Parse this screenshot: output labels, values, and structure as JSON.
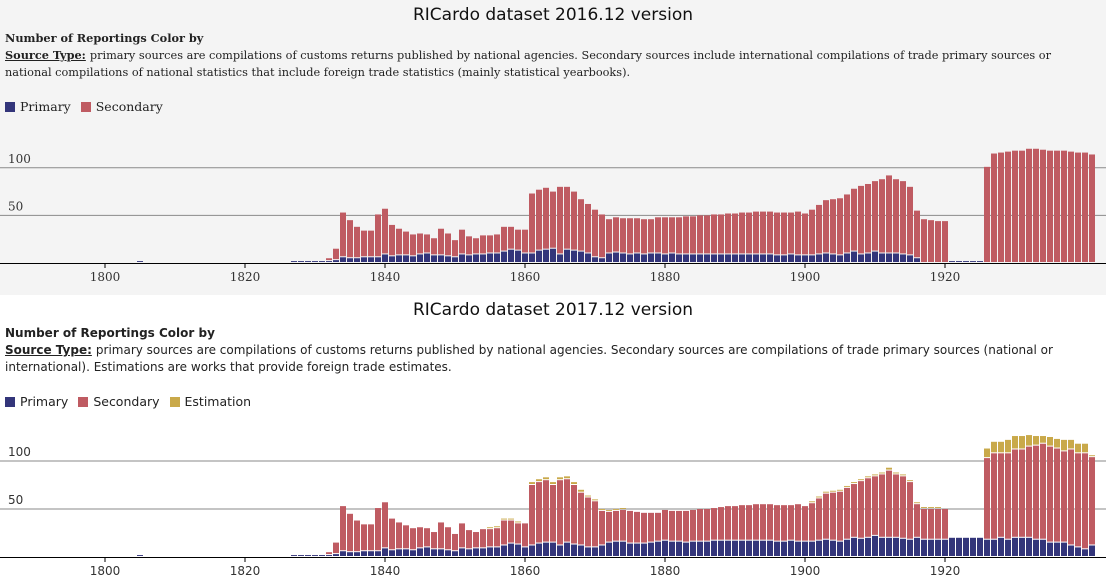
{
  "chart_data": [
    {
      "type": "bar",
      "stacked": true,
      "title": "RICardo dataset 2016.12 version",
      "heading": "Number of Reportings Color by",
      "source_label": "Source Type:",
      "description": "primary sources are compilations of customs returns published by national agencies. Secondary sources include international compilations of trade primary sources or national compilations of national statistics that include foreign trade statistics (mainly statistical yearbooks).",
      "x": [
        1786,
        1787,
        1788,
        1789,
        1790,
        1791,
        1792,
        1793,
        1794,
        1795,
        1796,
        1797,
        1798,
        1799,
        1800,
        1801,
        1802,
        1803,
        1804,
        1805,
        1806,
        1807,
        1808,
        1809,
        1810,
        1811,
        1812,
        1813,
        1814,
        1815,
        1816,
        1817,
        1818,
        1819,
        1820,
        1821,
        1822,
        1823,
        1824,
        1825,
        1826,
        1827,
        1828,
        1829,
        1830,
        1831,
        1832,
        1833,
        1834,
        1835,
        1836,
        1837,
        1838,
        1839,
        1840,
        1841,
        1842,
        1843,
        1844,
        1845,
        1846,
        1847,
        1848,
        1849,
        1850,
        1851,
        1852,
        1853,
        1854,
        1855,
        1856,
        1857,
        1858,
        1859,
        1860,
        1861,
        1862,
        1863,
        1864,
        1865,
        1866,
        1867,
        1868,
        1869,
        1870,
        1871,
        1872,
        1873,
        1874,
        1875,
        1876,
        1877,
        1878,
        1879,
        1880,
        1881,
        1882,
        1883,
        1884,
        1885,
        1886,
        1887,
        1888,
        1889,
        1890,
        1891,
        1892,
        1893,
        1894,
        1895,
        1896,
        1897,
        1898,
        1899,
        1900,
        1901,
        1902,
        1903,
        1904,
        1905,
        1906,
        1907,
        1908,
        1909,
        1910,
        1911,
        1912,
        1913,
        1914,
        1915,
        1916,
        1917,
        1918,
        1919,
        1920,
        1921,
        1922,
        1923,
        1924,
        1925,
        1926,
        1927,
        1928,
        1929,
        1930,
        1931,
        1932,
        1933,
        1934,
        1935,
        1936,
        1937,
        1938,
        1939,
        1940,
        1941
      ],
      "series": [
        {
          "name": "Primary",
          "color": "#33357a",
          "values": [
            1,
            0,
            0,
            0,
            0,
            1,
            0,
            0,
            0,
            0,
            1,
            1,
            1,
            1,
            1,
            1,
            1,
            1,
            1,
            2,
            1,
            1,
            1,
            1,
            0,
            0,
            0,
            0,
            0,
            0,
            0,
            0,
            0,
            0,
            1,
            1,
            1,
            1,
            1,
            1,
            1,
            2,
            2,
            2,
            2,
            2,
            2,
            3,
            6,
            5,
            5,
            6,
            6,
            6,
            9,
            7,
            8,
            8,
            7,
            9,
            10,
            8,
            8,
            7,
            6,
            9,
            8,
            9,
            9,
            10,
            10,
            12,
            14,
            13,
            10,
            10,
            13,
            14,
            15,
            9,
            14,
            13,
            12,
            10,
            6,
            5,
            10,
            11,
            10,
            9,
            10,
            9,
            10,
            10,
            9,
            10,
            9,
            9,
            9,
            9,
            9,
            9,
            9,
            9,
            9,
            9,
            9,
            9,
            9,
            9,
            8,
            8,
            9,
            8,
            8,
            8,
            9,
            10,
            9,
            8,
            10,
            12,
            9,
            10,
            12,
            10,
            10,
            10,
            9,
            8,
            5,
            0,
            0,
            0,
            0,
            2,
            2,
            2,
            2,
            2,
            0,
            0,
            0,
            0,
            0,
            0,
            0,
            0,
            0,
            0,
            0,
            0,
            0,
            0,
            0,
            0
          ]
        },
        {
          "name": "Secondary",
          "color": "#bf5b62",
          "values": [
            0,
            0,
            0,
            0,
            0,
            0,
            0,
            0,
            0,
            0,
            0,
            0,
            0,
            0,
            0,
            0,
            0,
            0,
            0,
            0,
            0,
            0,
            0,
            0,
            0,
            0,
            0,
            0,
            0,
            0,
            0,
            0,
            0,
            1,
            0,
            0,
            0,
            0,
            0,
            0,
            0,
            0,
            0,
            0,
            0,
            0,
            3,
            12,
            47,
            40,
            33,
            28,
            28,
            45,
            48,
            33,
            28,
            25,
            23,
            22,
            20,
            18,
            28,
            24,
            18,
            26,
            20,
            17,
            20,
            19,
            20,
            26,
            24,
            22,
            25,
            63,
            64,
            65,
            60,
            71,
            66,
            62,
            55,
            52,
            50,
            46,
            36,
            37,
            37,
            38,
            37,
            37,
            36,
            38,
            39,
            38,
            39,
            40,
            40,
            41,
            41,
            42,
            42,
            43,
            43,
            44,
            44,
            45,
            45,
            45,
            45,
            45,
            44,
            46,
            44,
            48,
            52,
            56,
            58,
            60,
            62,
            66,
            72,
            73,
            74,
            78,
            82,
            78,
            77,
            72,
            50,
            46,
            45,
            44,
            44,
            0,
            0,
            0,
            0,
            0,
            101,
            115,
            116,
            117,
            118,
            118,
            120,
            120,
            119,
            118,
            118,
            118,
            117,
            116,
            116,
            114
          ]
        }
      ],
      "xlim": [
        1785.5,
        1941.5
      ],
      "xticks": [
        1800,
        1820,
        1840,
        1860,
        1880,
        1900,
        1920
      ],
      "ylim": [
        0,
        125
      ],
      "yticks": [
        50,
        100
      ],
      "grid": true
    },
    {
      "type": "bar",
      "stacked": true,
      "title": "RICardo dataset 2017.12 version",
      "heading": "Number of Reportings Color by",
      "source_label": "Source Type:",
      "description": "primary sources are compilations of customs returns published by national agencies. Secondary sources are compilations of trade primary sources (national or international). Estimations are works that provide foreign trade estimates.",
      "x": [
        1786,
        1787,
        1788,
        1789,
        1790,
        1791,
        1792,
        1793,
        1794,
        1795,
        1796,
        1797,
        1798,
        1799,
        1800,
        1801,
        1802,
        1803,
        1804,
        1805,
        1806,
        1807,
        1808,
        1809,
        1810,
        1811,
        1812,
        1813,
        1814,
        1815,
        1816,
        1817,
        1818,
        1819,
        1820,
        1821,
        1822,
        1823,
        1824,
        1825,
        1826,
        1827,
        1828,
        1829,
        1830,
        1831,
        1832,
        1833,
        1834,
        1835,
        1836,
        1837,
        1838,
        1839,
        1840,
        1841,
        1842,
        1843,
        1844,
        1845,
        1846,
        1847,
        1848,
        1849,
        1850,
        1851,
        1852,
        1853,
        1854,
        1855,
        1856,
        1857,
        1858,
        1859,
        1860,
        1861,
        1862,
        1863,
        1864,
        1865,
        1866,
        1867,
        1868,
        1869,
        1870,
        1871,
        1872,
        1873,
        1874,
        1875,
        1876,
        1877,
        1878,
        1879,
        1880,
        1881,
        1882,
        1883,
        1884,
        1885,
        1886,
        1887,
        1888,
        1889,
        1890,
        1891,
        1892,
        1893,
        1894,
        1895,
        1896,
        1897,
        1898,
        1899,
        1900,
        1901,
        1902,
        1903,
        1904,
        1905,
        1906,
        1907,
        1908,
        1909,
        1910,
        1911,
        1912,
        1913,
        1914,
        1915,
        1916,
        1917,
        1918,
        1919,
        1920,
        1921,
        1922,
        1923,
        1924,
        1925,
        1926,
        1927,
        1928,
        1929,
        1930,
        1931,
        1932,
        1933,
        1934,
        1935,
        1936,
        1937,
        1938,
        1939,
        1940,
        1941
      ],
      "series": [
        {
          "name": "Primary",
          "color": "#33357a",
          "values": [
            1,
            0,
            0,
            0,
            0,
            1,
            0,
            0,
            0,
            0,
            1,
            1,
            1,
            1,
            1,
            1,
            1,
            1,
            1,
            2,
            1,
            1,
            1,
            1,
            0,
            0,
            0,
            0,
            0,
            0,
            0,
            0,
            0,
            0,
            1,
            1,
            1,
            1,
            1,
            1,
            1,
            2,
            2,
            2,
            2,
            2,
            2,
            3,
            6,
            5,
            5,
            6,
            6,
            6,
            9,
            7,
            8,
            8,
            7,
            9,
            10,
            8,
            8,
            7,
            6,
            9,
            8,
            9,
            9,
            10,
            10,
            12,
            14,
            13,
            10,
            12,
            14,
            15,
            15,
            12,
            15,
            13,
            12,
            10,
            10,
            12,
            15,
            16,
            16,
            14,
            14,
            14,
            15,
            16,
            17,
            16,
            16,
            15,
            16,
            16,
            16,
            17,
            17,
            17,
            17,
            17,
            17,
            17,
            17,
            17,
            16,
            16,
            17,
            16,
            16,
            16,
            17,
            18,
            17,
            16,
            18,
            20,
            19,
            20,
            22,
            20,
            20,
            20,
            19,
            18,
            20,
            18,
            18,
            18,
            18,
            20,
            20,
            20,
            20,
            20,
            18,
            18,
            20,
            18,
            20,
            20,
            20,
            18,
            18,
            15,
            15,
            15,
            12,
            10,
            8,
            12
          ]
        },
        {
          "name": "Secondary",
          "color": "#bf5b62",
          "values": [
            0,
            0,
            0,
            0,
            0,
            0,
            0,
            0,
            0,
            0,
            0,
            0,
            0,
            0,
            0,
            0,
            0,
            0,
            0,
            0,
            0,
            0,
            0,
            0,
            0,
            0,
            0,
            0,
            0,
            0,
            0,
            0,
            0,
            1,
            0,
            0,
            0,
            0,
            0,
            0,
            0,
            0,
            0,
            0,
            0,
            0,
            3,
            12,
            47,
            40,
            33,
            28,
            28,
            45,
            48,
            33,
            28,
            25,
            23,
            22,
            20,
            18,
            28,
            24,
            18,
            26,
            20,
            17,
            20,
            19,
            20,
            26,
            24,
            22,
            25,
            63,
            64,
            65,
            60,
            68,
            66,
            62,
            55,
            52,
            48,
            36,
            32,
            32,
            33,
            34,
            33,
            32,
            31,
            30,
            32,
            32,
            32,
            33,
            33,
            34,
            34,
            34,
            35,
            36,
            36,
            37,
            37,
            38,
            38,
            38,
            38,
            38,
            37,
            39,
            37,
            40,
            44,
            48,
            50,
            52,
            54,
            56,
            60,
            62,
            62,
            66,
            70,
            66,
            65,
            60,
            35,
            32,
            32,
            32,
            32,
            0,
            0,
            0,
            0,
            0,
            85,
            90,
            88,
            90,
            92,
            92,
            95,
            98,
            100,
            100,
            98,
            95,
            100,
            98,
            100,
            92
          ]
        },
        {
          "name": "Estimation",
          "color": "#c9a94a",
          "values": [
            0,
            0,
            0,
            0,
            0,
            0,
            0,
            0,
            0,
            0,
            0,
            0,
            0,
            0,
            0,
            0,
            0,
            0,
            0,
            0,
            0,
            0,
            0,
            0,
            0,
            0,
            0,
            0,
            0,
            0,
            0,
            0,
            0,
            0,
            0,
            0,
            0,
            0,
            0,
            0,
            0,
            0,
            0,
            0,
            0,
            0,
            0,
            0,
            0,
            0,
            0,
            0,
            0,
            0,
            0,
            0,
            0,
            0,
            0,
            0,
            0,
            0,
            0,
            0,
            0,
            0,
            0,
            0,
            0,
            2,
            2,
            2,
            2,
            2,
            0,
            3,
            3,
            3,
            3,
            3,
            3,
            3,
            3,
            2,
            2,
            2,
            2,
            2,
            2,
            1,
            1,
            1,
            1,
            1,
            1,
            1,
            1,
            1,
            1,
            1,
            1,
            1,
            1,
            1,
            1,
            1,
            1,
            1,
            1,
            1,
            1,
            1,
            1,
            1,
            1,
            2,
            2,
            2,
            2,
            2,
            2,
            2,
            2,
            2,
            2,
            2,
            3,
            2,
            2,
            2,
            2,
            2,
            2,
            2,
            1,
            0,
            0,
            0,
            0,
            0,
            10,
            12,
            12,
            14,
            14,
            14,
            12,
            10,
            8,
            10,
            10,
            12,
            10,
            10,
            10,
            2
          ]
        }
      ],
      "xlim": [
        1785.5,
        1941.5
      ],
      "xticks": [
        1800,
        1820,
        1840,
        1860,
        1880,
        1900,
        1920
      ],
      "ylim": [
        0,
        125
      ],
      "yticks": [
        50,
        100
      ],
      "grid": true
    }
  ]
}
